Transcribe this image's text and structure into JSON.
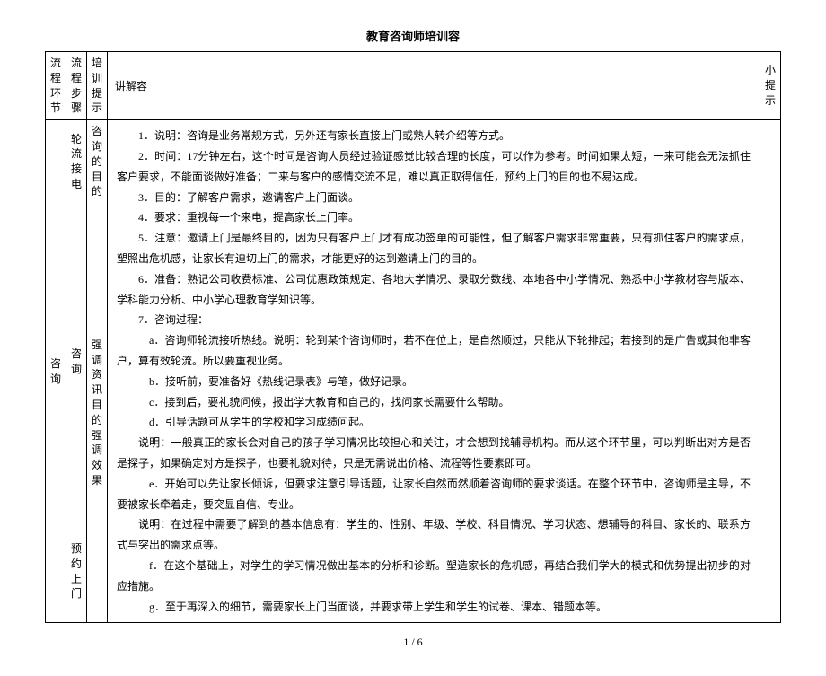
{
  "title": "教育咨询师培训容",
  "pager": "1 / 6",
  "headers": {
    "col1": "流程环节",
    "col2": "流程步骤",
    "col3": "培训提示",
    "col4": "讲解容",
    "col5": "小提示"
  },
  "col1": {
    "a": "咨询"
  },
  "col2": {
    "a": "轮流接电",
    "b": "咨询",
    "c": "预约上门"
  },
  "col3": {
    "a": "咨询的目的",
    "b": "强调资讯目的强调效果"
  },
  "content": {
    "p1": "1．说明：咨询是业务常规方式，另外还有家长直接上门或熟人转介绍等方式。",
    "p2": "2．时间：17分钟左右，这个时间是咨询人员经过验证感觉比较合理的长度，可以作为参考。时间如果太短，一来可能会无法抓住客户要求，不能面谈做好准备；二来与客户的感情交流不足，难以真正取得信任，预约上门的目的也不易达成。",
    "p3": "3．目的：了解客户需求，邀请客户上门面谈。",
    "p4": "4．要求：重视每一个来电，提高家长上门率。",
    "p5": "5．注意：邀请上门是最终目的，因为只有客户上门才有成功签单的可能性，但了解客户需求非常重要，只有抓住客户的需求点，塑照出危机感，让家长有迫切上门的需求，才能更好的达到邀请上门的目的。",
    "p6": "6．准备：熟记公司收费标准、公司优惠政策规定、各地大学情况、录取分数线、本地各中小学情况、熟悉中小学教材容与版本、学科能力分析、中小学心理教育学知识等。",
    "p7": "7．咨询过程：",
    "p7a": "a．咨询师轮流接听热线。说明：轮到某个咨询师时，若不在位上，是自然顺过，只能从下轮排起；若接到的是广告或其他非客户，算有效轮流。所以要重视业务。",
    "p7b": "b．接听前，要准备好《热线记录表》与笔，做好记录。",
    "p7c": "c．接到后，要礼貌问候，报出学大教育和自己的，找问家长需要什么帮助。",
    "p7d": "d．引导话题可从学生的学校和学习成绩问起。",
    "p7d_note": "说明：一般真正的家长会对自己的孩子学习情况比较担心和关注，才会想到找辅导机构。而从这个环节里，可以判断出对方是否是探子，如果确定对方是探子，也要礼貌对待，只是无需说出价格、流程等性要素即可。",
    "p7e": "e．开始可以先让家长倾诉，但要求注意引导话题，让家长自然而然顺着咨询师的要求谈话。在整个环节中，咨询师是主导，不要被家长牵着走，要突显自信、专业。",
    "p7e_note": "说明：在过程中需要了解到的基本信息有：学生的、性别、年级、学校、科目情况、学习状态、想辅导的科目、家长的、联系方式与突出的需求点等。",
    "p7f": "f．在这个基础上，对学生的学习情况做出基本的分析和诊断。塑造家长的危机感，再结合我们学大的模式和优势提出初步的对应措施。",
    "p7g": "g．至于再深入的细节，需要家长上门当面谈，并要求带上学生和学生的试卷、课本、错题本等。"
  }
}
